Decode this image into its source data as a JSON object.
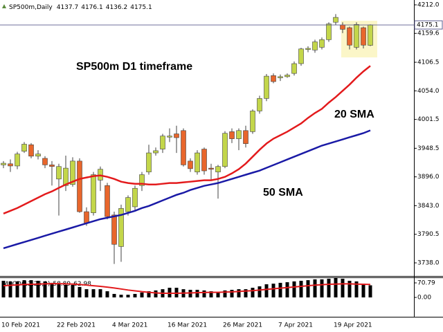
{
  "chart_data": [
    {
      "type": "candlestick",
      "title": "SP500m,Daily",
      "annotation": "SP500m D1 timeframe",
      "x": [
        "10 Feb 2021",
        null,
        null,
        null,
        null,
        null,
        null,
        null,
        "22 Feb 2021",
        null,
        null,
        null,
        null,
        null,
        null,
        null,
        "4 Mar 2021",
        null,
        null,
        null,
        null,
        null,
        null,
        null,
        "16 Mar 2021",
        null,
        null,
        null,
        null,
        null,
        null,
        null,
        "26 Mar 2021",
        null,
        null,
        null,
        null,
        null,
        null,
        null,
        "7 Apr 2021",
        null,
        null,
        null,
        null,
        null,
        null,
        null,
        "19 Apr 2021",
        null,
        null,
        null,
        null,
        null
      ],
      "open": [
        3918,
        3920,
        3916,
        3943,
        3955,
        3934,
        3930,
        3918,
        3892,
        3880,
        3882,
        3925,
        3832,
        3830,
        3890,
        3880,
        3826,
        3768,
        3832,
        3841,
        3880,
        3905,
        3940,
        3947,
        3969,
        3975,
        3981,
        3925,
        3905,
        3947,
        3912,
        3905,
        3915,
        3979,
        3966,
        3981,
        3979,
        4017,
        4040,
        4082,
        4078,
        4080,
        4086,
        4104,
        4130,
        4129,
        4134,
        4148,
        4180,
        4175,
        4170,
        4134,
        4170,
        4137.7
      ],
      "high": [
        3925,
        3928,
        3942,
        3960,
        3958,
        3945,
        3934,
        3925,
        3920,
        3935,
        3932,
        3930,
        3840,
        3905,
        3915,
        3885,
        3832,
        3845,
        3862,
        3880,
        3905,
        3955,
        3950,
        3975,
        3985,
        3990,
        3985,
        3930,
        3945,
        3950,
        3920,
        3918,
        3980,
        3985,
        3985,
        3990,
        4020,
        4045,
        4085,
        4086,
        4084,
        4086,
        4108,
        4133,
        4136,
        4148,
        4152,
        4180,
        4195,
        4180,
        4172,
        4180,
        4172,
        4176.1
      ],
      "low": [
        3912,
        3905,
        3910,
        3940,
        3930,
        3928,
        3912,
        3880,
        3825,
        3870,
        3878,
        3830,
        3806,
        3825,
        3870,
        3818,
        3736,
        3740,
        3825,
        3835,
        3870,
        3900,
        3935,
        3940,
        3960,
        3940,
        3915,
        3905,
        3900,
        3900,
        3890,
        3856,
        3912,
        3958,
        3945,
        3950,
        3975,
        4012,
        4035,
        4068,
        4072,
        4078,
        4082,
        4100,
        4125,
        4124,
        4130,
        4144,
        4175,
        4160,
        4130,
        4130,
        4132,
        4136.2
      ],
      "close": [
        3921,
        3916,
        3938,
        3956,
        3934,
        3938,
        3918,
        3915,
        3915,
        3912,
        3925,
        3832,
        3811,
        3900,
        3910,
        3823,
        3772,
        3838,
        3858,
        3875,
        3900,
        3940,
        3944,
        3971,
        3971,
        3968,
        3918,
        3911,
        3940,
        3907,
        3910,
        3915,
        3976,
        3966,
        3981,
        3957,
        4017,
        4040,
        4081,
        4071,
        4080,
        4083,
        4104,
        4131,
        4132,
        4144,
        4148,
        4177,
        4189,
        4167,
        4138,
        4176,
        4138,
        4175.1
      ],
      "up_color": "#c3d64a",
      "down_color": "#e8662c",
      "wick_color": "#404040",
      "series": [
        {
          "name": "20 SMA",
          "color": "#e31a1c",
          "values": [
            3828.5,
            3833.6,
            3838.7,
            3845.1,
            3851.5,
            3857.8,
            3864.2,
            3869.3,
            3875.7,
            3882,
            3887.1,
            3892.2,
            3894.8,
            3897.3,
            3898.6,
            3896,
            3892.2,
            3887.1,
            3884.6,
            3883.3,
            3883.3,
            3882,
            3882,
            3883.3,
            3884.6,
            3884.6,
            3885.9,
            3887.1,
            3888.4,
            3889.7,
            3889.7,
            3892.2,
            3896,
            3902.4,
            3910.1,
            3920.3,
            3933,
            3945.7,
            3957.2,
            3966.1,
            3972.5,
            3978.9,
            3986.5,
            3994.1,
            4004.3,
            4013.3,
            4020.9,
            4032.4,
            4042.6,
            4054,
            4065.5,
            4078.2,
            4089.7,
            4099.9
          ]
        },
        {
          "name": "50 SMA",
          "color": "#1a1aa6",
          "values": [
            3764.8,
            3768.6,
            3772.5,
            3776.3,
            3780.1,
            3783.9,
            3787.8,
            3791.6,
            3795.4,
            3799.2,
            3803,
            3806.9,
            3810.7,
            3814.5,
            3818.3,
            3820.9,
            3823.4,
            3826,
            3829.8,
            3833.6,
            3838.7,
            3842.5,
            3847.6,
            3852.7,
            3857.8,
            3862.9,
            3866.7,
            3871.8,
            3875.7,
            3879.5,
            3882,
            3884.6,
            3888.4,
            3892.2,
            3896,
            3899.9,
            3903.7,
            3907.5,
            3912.6,
            3917.7,
            3922.8,
            3927.9,
            3933,
            3938.1,
            3943.2,
            3948.3,
            3953.4,
            3957.2,
            3961,
            3964.8,
            3968.7,
            3972.5,
            3976.3,
            3981.4
          ]
        }
      ],
      "ylim": [
        3713.9,
        4220.9
      ],
      "yticks": [
        {
          "value": 4212,
          "label": "4212.0"
        },
        4159.6,
        4106.5,
        {
          "value": 4054,
          "label": "4054.0"
        },
        4001.5,
        3948.5,
        {
          "value": 3896,
          "label": "3896.0"
        },
        {
          "value": 3843,
          "label": "3843.0"
        },
        3790.5,
        {
          "value": 3738,
          "label": "3738.0"
        }
      ],
      "current_price": 4175.1,
      "current_price_color": "#5b5b8f"
    },
    {
      "type": "bar",
      "title": "MACD(12,26,9)",
      "values": [
        81,
        78,
        78,
        84,
        84,
        81,
        78,
        71,
        64,
        61,
        61,
        51,
        40,
        40,
        40,
        30,
        17,
        13,
        13,
        17,
        24,
        30,
        34,
        40,
        47,
        47,
        40,
        37,
        37,
        34,
        30,
        27,
        34,
        37,
        40,
        40,
        47,
        54,
        64,
        67,
        71,
        74,
        78,
        81,
        84,
        88,
        88,
        91,
        94,
        91,
        81,
        78,
        67,
        58.89
      ],
      "signal": [
        57,
        59,
        61,
        63,
        64,
        65,
        66,
        67,
        67,
        66,
        65,
        63,
        60,
        57,
        54,
        50,
        46,
        41,
        36,
        32,
        28,
        25,
        22,
        20,
        20,
        20,
        21,
        22,
        23,
        24,
        25,
        25,
        26,
        27,
        29,
        31,
        33,
        36,
        39,
        42,
        45,
        48,
        51,
        54,
        57,
        60,
        62,
        64,
        65,
        66,
        66,
        65,
        64,
        62.98
      ],
      "color": "#000000",
      "signal_color": "#e31a1c",
      "ylim": [
        -94.4,
        97.7
      ],
      "yticks": [
        70.79,
        {
          "value": 0,
          "label": "0.00"
        }
      ]
    }
  ]
}
